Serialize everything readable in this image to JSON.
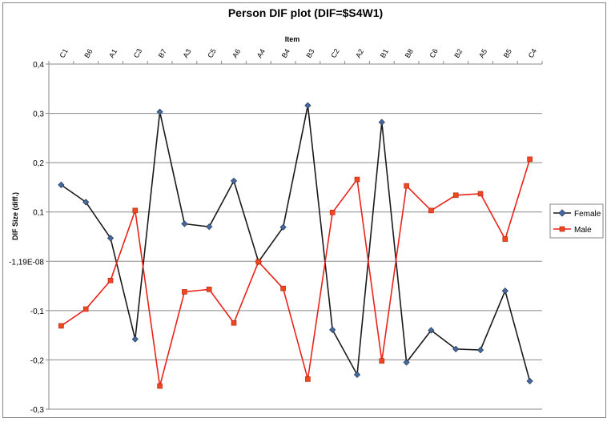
{
  "chart_data": {
    "type": "line",
    "title": "Person DIF plot (DIF=$S4W1)",
    "xlabel": "Item",
    "ylabel": "DIF Size (diff.)",
    "categories": [
      "C1",
      "B6",
      "A1",
      "C3",
      "B7",
      "A3",
      "C5",
      "A6",
      "A4",
      "B4",
      "B3",
      "C2",
      "A2",
      "B1",
      "B8",
      "C6",
      "B2",
      "A5",
      "B5",
      "C4"
    ],
    "ylim": [
      -0.3,
      0.4
    ],
    "yticks": [
      -0.3,
      -0.2,
      -0.1,
      0,
      0.1,
      0.2,
      0.3,
      0.4
    ],
    "ytick_labels": [
      "-0,3",
      "-0,2",
      "-0,1",
      "-1,19E-08",
      "0,1",
      "0,2",
      "0,3",
      "0,4"
    ],
    "x_axis_position": "top",
    "grid": true,
    "legend_position": "right",
    "series": [
      {
        "name": "Female",
        "color": "#1a1a1a",
        "marker": "diamond",
        "marker_color": "#44699e",
        "values": [
          0.155,
          0.12,
          0.047,
          -0.158,
          0.303,
          0.076,
          0.07,
          0.163,
          -0.001,
          0.069,
          0.316,
          -0.139,
          -0.23,
          0.282,
          -0.205,
          -0.14,
          -0.178,
          -0.18,
          -0.06,
          -0.243
        ]
      },
      {
        "name": "Male",
        "color": "#e8231a",
        "marker": "square",
        "marker_color": "#f0481e",
        "values": [
          -0.131,
          -0.097,
          -0.039,
          0.103,
          -0.253,
          -0.062,
          -0.057,
          -0.125,
          -0.001,
          -0.055,
          -0.239,
          0.099,
          0.166,
          -0.202,
          0.153,
          0.103,
          0.134,
          0.137,
          0.045,
          0.207
        ]
      }
    ]
  }
}
